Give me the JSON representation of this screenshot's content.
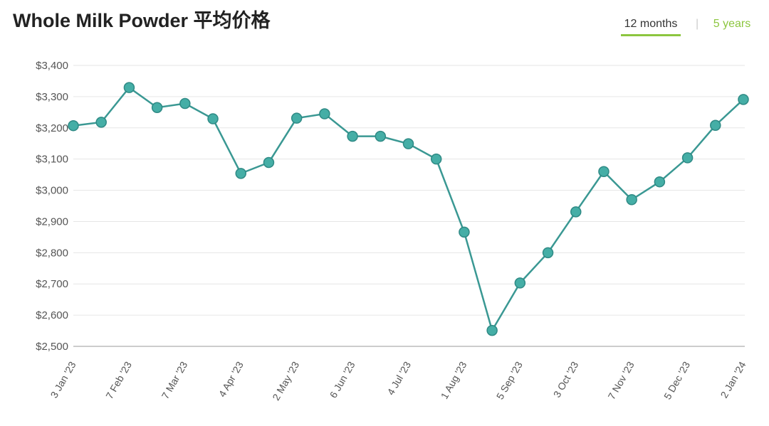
{
  "chart_data": {
    "type": "line",
    "title": "Whole Milk Powder 平均价格",
    "tabs": [
      "12 months",
      "5 years"
    ],
    "active_tab": "12 months",
    "categories": [
      "3 Jan '23",
      null,
      "7 Feb '23",
      null,
      "7 Mar '23",
      null,
      "4 Apr '23",
      null,
      "2 May '23",
      null,
      "6 Jun '23",
      null,
      "4 Jul '23",
      null,
      "1 Aug '23",
      null,
      "5 Sep '23",
      null,
      "3 Oct '23",
      null,
      "7 Nov '23",
      null,
      "5 Dec '23",
      null,
      "2 Jan '24"
    ],
    "values": [
      3207,
      3218,
      3329,
      3265,
      3278,
      3229,
      3054,
      3089,
      3231,
      3245,
      3173,
      3173,
      3149,
      3100,
      2866,
      2551,
      2703,
      2800,
      2931,
      3060,
      2970,
      3027,
      3104,
      3208,
      3291
    ],
    "color": "#45aea6",
    "ylim": [
      2500,
      3400
    ],
    "yticks": [
      {
        "value": 2500,
        "label": "$2,500"
      },
      {
        "value": 2600,
        "label": "$2,600"
      },
      {
        "value": 2700,
        "label": "$2,700"
      },
      {
        "value": 2800,
        "label": "$2,800"
      },
      {
        "value": 2900,
        "label": "$2,900"
      },
      {
        "value": 3000,
        "label": "$3,000"
      },
      {
        "value": 3100,
        "label": "$3,100"
      },
      {
        "value": 3200,
        "label": "$3,200"
      },
      {
        "value": 3300,
        "label": "$3,300"
      },
      {
        "value": 3400,
        "label": "$3,400"
      }
    ],
    "grid": true
  }
}
